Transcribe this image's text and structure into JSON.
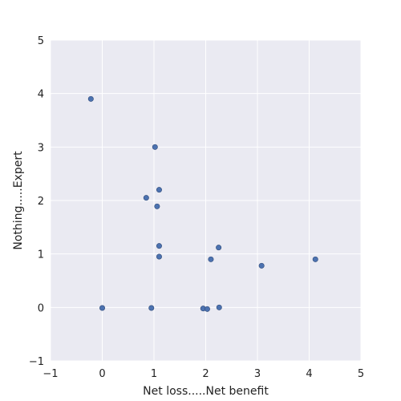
{
  "chart_data": {
    "type": "scatter",
    "xlabel": "Net loss.....Net benefit",
    "ylabel": "Nothing.....Expert",
    "xlim": [
      -1,
      5
    ],
    "ylim": [
      -1,
      5
    ],
    "x_ticks": [
      -1,
      0,
      1,
      2,
      3,
      4,
      5
    ],
    "y_ticks": [
      -1,
      0,
      1,
      2,
      3,
      4,
      5
    ],
    "x_tick_labels": [
      "−1",
      "0",
      "1",
      "2",
      "3",
      "4",
      "5"
    ],
    "y_tick_labels": [
      "−1",
      "0",
      "1",
      "2",
      "3",
      "4",
      "5"
    ],
    "grid": true,
    "background_color": "#eaeaf2",
    "grid_color": "#ffffff",
    "marker_color": "#4c72b0",
    "points": [
      {
        "x": -0.22,
        "y": 3.9
      },
      {
        "x": 1.02,
        "y": 3.0
      },
      {
        "x": 1.1,
        "y": 2.2
      },
      {
        "x": 0.85,
        "y": 2.05
      },
      {
        "x": 1.06,
        "y": 1.89
      },
      {
        "x": 1.1,
        "y": 1.15
      },
      {
        "x": 1.1,
        "y": 0.95
      },
      {
        "x": 2.25,
        "y": 1.12
      },
      {
        "x": 2.1,
        "y": 0.9
      },
      {
        "x": 3.08,
        "y": 0.78
      },
      {
        "x": 4.12,
        "y": 0.9
      },
      {
        "x": 0.0,
        "y": -0.01
      },
      {
        "x": 0.95,
        "y": -0.01
      },
      {
        "x": 1.95,
        "y": -0.02
      },
      {
        "x": 2.03,
        "y": -0.03
      },
      {
        "x": 2.26,
        "y": 0.0
      }
    ]
  }
}
